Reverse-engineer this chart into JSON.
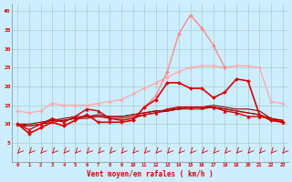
{
  "background_color": "#cceeff",
  "grid_color": "#aacccc",
  "xlabel": "Vent moyen/en rafales ( km/h )",
  "x": [
    0,
    1,
    2,
    3,
    4,
    5,
    6,
    7,
    8,
    9,
    10,
    11,
    12,
    13,
    14,
    15,
    16,
    17,
    18,
    19,
    20,
    21,
    22,
    23
  ],
  "ylim": [
    0,
    42
  ],
  "yticks": [
    5,
    10,
    15,
    20,
    25,
    30,
    35,
    40
  ],
  "lines": [
    {
      "y": [
        13.5,
        13.0,
        13.5,
        15.5,
        15.0,
        15.0,
        15.0,
        15.5,
        16.0,
        16.5,
        18.0,
        19.5,
        21.0,
        22.5,
        24.0,
        25.0,
        25.5,
        25.5,
        25.0,
        25.5,
        25.5,
        25.0,
        16.0,
        15.5
      ],
      "color": "#ffaaaa",
      "lw": 1.0,
      "marker": "D",
      "markersize": 2.0,
      "zorder": 2
    },
    {
      "y": [
        null,
        null,
        null,
        null,
        null,
        null,
        null,
        null,
        null,
        null,
        11.0,
        14.5,
        17.5,
        24.0,
        34.0,
        39.0,
        35.5,
        31.0,
        25.0,
        null,
        null,
        null,
        null,
        null
      ],
      "color": "#ff8888",
      "lw": 1.0,
      "marker": "D",
      "markersize": 2.0,
      "zorder": 3
    },
    {
      "y": [
        10.0,
        7.5,
        9.0,
        10.5,
        9.5,
        11.0,
        12.5,
        10.5,
        10.5,
        10.5,
        11.0,
        14.5,
        16.5,
        21.0,
        21.0,
        19.5,
        19.5,
        17.0,
        18.5,
        22.0,
        21.5,
        12.5,
        11.0,
        10.5
      ],
      "color": "#dd0000",
      "lw": 1.2,
      "marker": "D",
      "markersize": 2.0,
      "zorder": 5
    },
    {
      "y": [
        10.0,
        8.5,
        10.0,
        11.5,
        10.5,
        12.0,
        14.0,
        13.5,
        11.5,
        11.0,
        11.5,
        12.5,
        13.0,
        14.0,
        14.5,
        14.5,
        14.5,
        14.5,
        13.5,
        13.0,
        12.0,
        12.0,
        11.5,
        10.5
      ],
      "color": "#cc0000",
      "lw": 1.0,
      "marker": "^",
      "markersize": 2.5,
      "zorder": 4
    },
    {
      "y": [
        10.0,
        9.5,
        10.0,
        11.0,
        11.0,
        11.5,
        12.0,
        12.0,
        11.5,
        11.5,
        12.0,
        12.5,
        13.0,
        13.5,
        14.0,
        14.0,
        14.0,
        14.5,
        14.0,
        13.5,
        13.0,
        12.5,
        11.5,
        11.0
      ],
      "color": "#cc0000",
      "lw": 0.8,
      "marker": null,
      "markersize": 0,
      "zorder": 3
    },
    {
      "y": [
        10.0,
        10.0,
        10.5,
        11.0,
        11.5,
        12.0,
        12.0,
        12.5,
        12.0,
        12.0,
        12.5,
        13.0,
        13.5,
        13.5,
        14.5,
        14.5,
        14.5,
        15.0,
        14.5,
        14.0,
        14.0,
        13.5,
        11.5,
        11.0
      ],
      "color": "#880000",
      "lw": 0.8,
      "marker": null,
      "markersize": 0,
      "zorder": 3
    },
    {
      "y": [
        9.5,
        9.5,
        10.0,
        10.5,
        11.0,
        11.5,
        11.5,
        12.0,
        12.0,
        12.0,
        12.5,
        13.0,
        13.5,
        13.5,
        14.0,
        14.5,
        14.5,
        14.5,
        14.0,
        13.5,
        13.0,
        12.5,
        11.0,
        10.5
      ],
      "color": "#aa0000",
      "lw": 0.8,
      "marker": null,
      "markersize": 0,
      "zorder": 3
    }
  ]
}
